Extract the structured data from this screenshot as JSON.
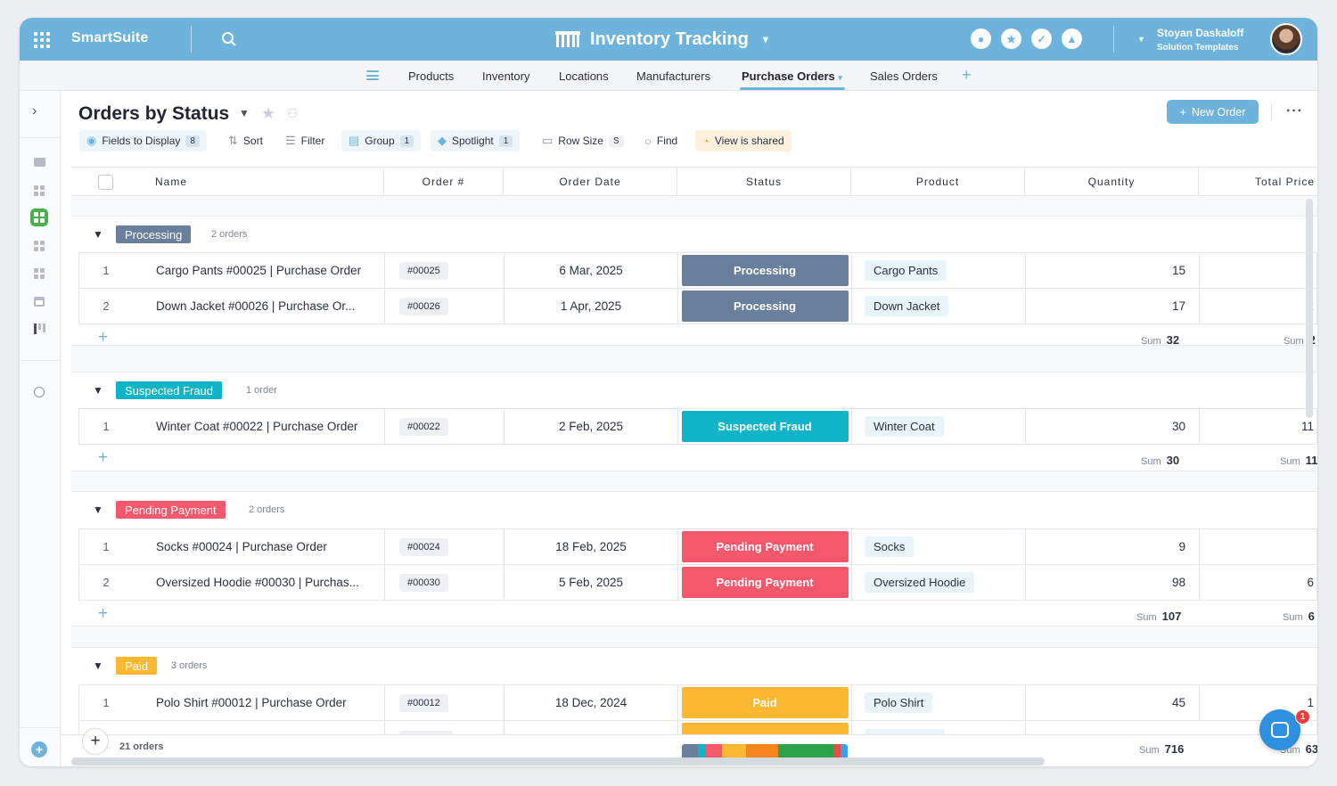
{
  "topbar": {
    "brand": "SmartSuite",
    "app_title": "Inventory Tracking",
    "user_name": "Stoyan Daskaloff",
    "user_org": "Solution Templates"
  },
  "tabs": [
    {
      "label": "Products"
    },
    {
      "label": "Inventory"
    },
    {
      "label": "Locations"
    },
    {
      "label": "Manufacturers"
    },
    {
      "label": "Purchase Orders"
    },
    {
      "label": "Sales Orders"
    }
  ],
  "view": {
    "title": "Orders by Status",
    "new_button": "New Order"
  },
  "toolbar": {
    "fields": "Fields to Display",
    "fields_count": "8",
    "sort": "Sort",
    "filter": "Filter",
    "group": "Group",
    "group_count": "1",
    "spotlight": "Spotlight",
    "spotlight_count": "1",
    "row_size": "Row Size",
    "row_size_value": "S",
    "find": "Find",
    "shared": "View is shared"
  },
  "columns": [
    "Name",
    "Order #",
    "Order Date",
    "Status",
    "Product",
    "Quantity",
    "Total Price"
  ],
  "groups": [
    {
      "name": "Processing",
      "count": "2 orders",
      "color": "#6a7f9c",
      "rows": [
        {
          "num": "1",
          "name": "Cargo Pants #00025 | Purchase Order",
          "order": "#00025",
          "date": "6 Mar, 2025",
          "status": "Processing",
          "product": "Cargo Pants",
          "qty": "15",
          "total": ""
        },
        {
          "num": "2",
          "name": "Down Jacket #00026 | Purchase Or...",
          "order": "#00026",
          "date": "1 Apr, 2025",
          "status": "Processing",
          "product": "Down Jacket",
          "qty": "17",
          "total": "2"
        }
      ],
      "sum_label": "Sum",
      "sum_qty": "32",
      "sum_total": "2"
    },
    {
      "name": "Suspected Fraud",
      "count": "1 order",
      "color": "#10b4c8",
      "rows": [
        {
          "num": "1",
          "name": "Winter Coat #00022 | Purchase Order",
          "order": "#00022",
          "date": "2 Feb, 2025",
          "status": "Suspected Fraud",
          "product": "Winter Coat",
          "qty": "30",
          "total": "11"
        }
      ],
      "sum_label": "Sum",
      "sum_qty": "30",
      "sum_total": "11"
    },
    {
      "name": "Pending Payment",
      "count": "2 orders",
      "color": "#f5576c",
      "rows": [
        {
          "num": "1",
          "name": "Socks #00024 | Purchase Order",
          "order": "#00024",
          "date": "18 Feb, 2025",
          "status": "Pending Payment",
          "product": "Socks",
          "qty": "9",
          "total": ""
        },
        {
          "num": "2",
          "name": "Oversized Hoodie #00030 | Purchas...",
          "order": "#00030",
          "date": "5 Feb, 2025",
          "status": "Pending Payment",
          "product": "Oversized Hoodie",
          "qty": "98",
          "total": "6"
        }
      ],
      "sum_label": "Sum",
      "sum_qty": "107",
      "sum_total": "6"
    },
    {
      "name": "Paid",
      "count": "3 orders",
      "color": "#fdb833",
      "rows": [
        {
          "num": "1",
          "name": "Polo Shirt #00012 | Purchase Order",
          "order": "#00012",
          "date": "18 Dec, 2024",
          "status": "Paid",
          "product": "Polo Shirt",
          "qty": "45",
          "total": "1"
        }
      ]
    }
  ],
  "footer": {
    "count": "21 orders",
    "sum_label": "Sum",
    "sum_qty": "716",
    "sum_total": "63"
  },
  "chat_badge": "1",
  "colors": {
    "accent": "#6db3dc",
    "active_view": "#4cae4f"
  }
}
